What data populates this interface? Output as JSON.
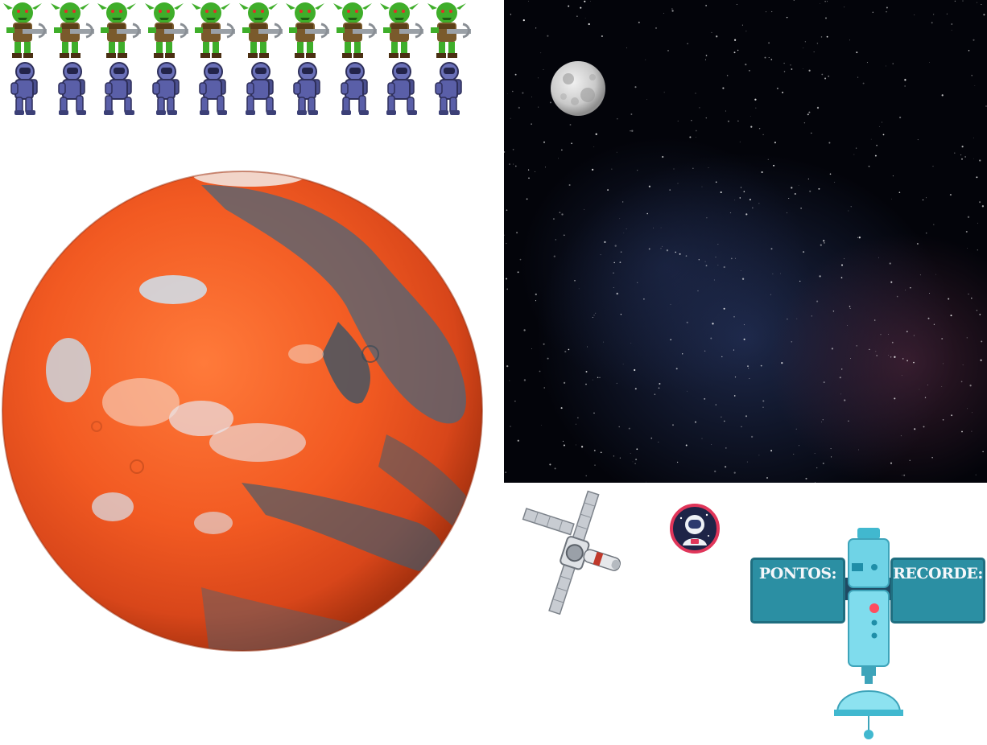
{
  "hud": {
    "points_label": "PONTOS:",
    "record_label": "RECORDE:"
  },
  "sprites": {
    "enemy_name": "goblin-sprite",
    "enemy_frame_count": 10,
    "player_name": "astronaut-sprite",
    "player_frame_count": 10
  },
  "icons": [
    "mars-planet",
    "moon-icon",
    "satellite-icon",
    "astronaut-avatar-icon",
    "space-station-icon"
  ],
  "colors": {
    "goblin_skin": "#3fae2a",
    "goblin_tunic": "#7a5a2c",
    "astronaut_suit": "#5a5fa8",
    "mars": "#ee5a24",
    "space": "#03040a",
    "panel": "#2b8fa3",
    "station": "#6fd3e6"
  }
}
